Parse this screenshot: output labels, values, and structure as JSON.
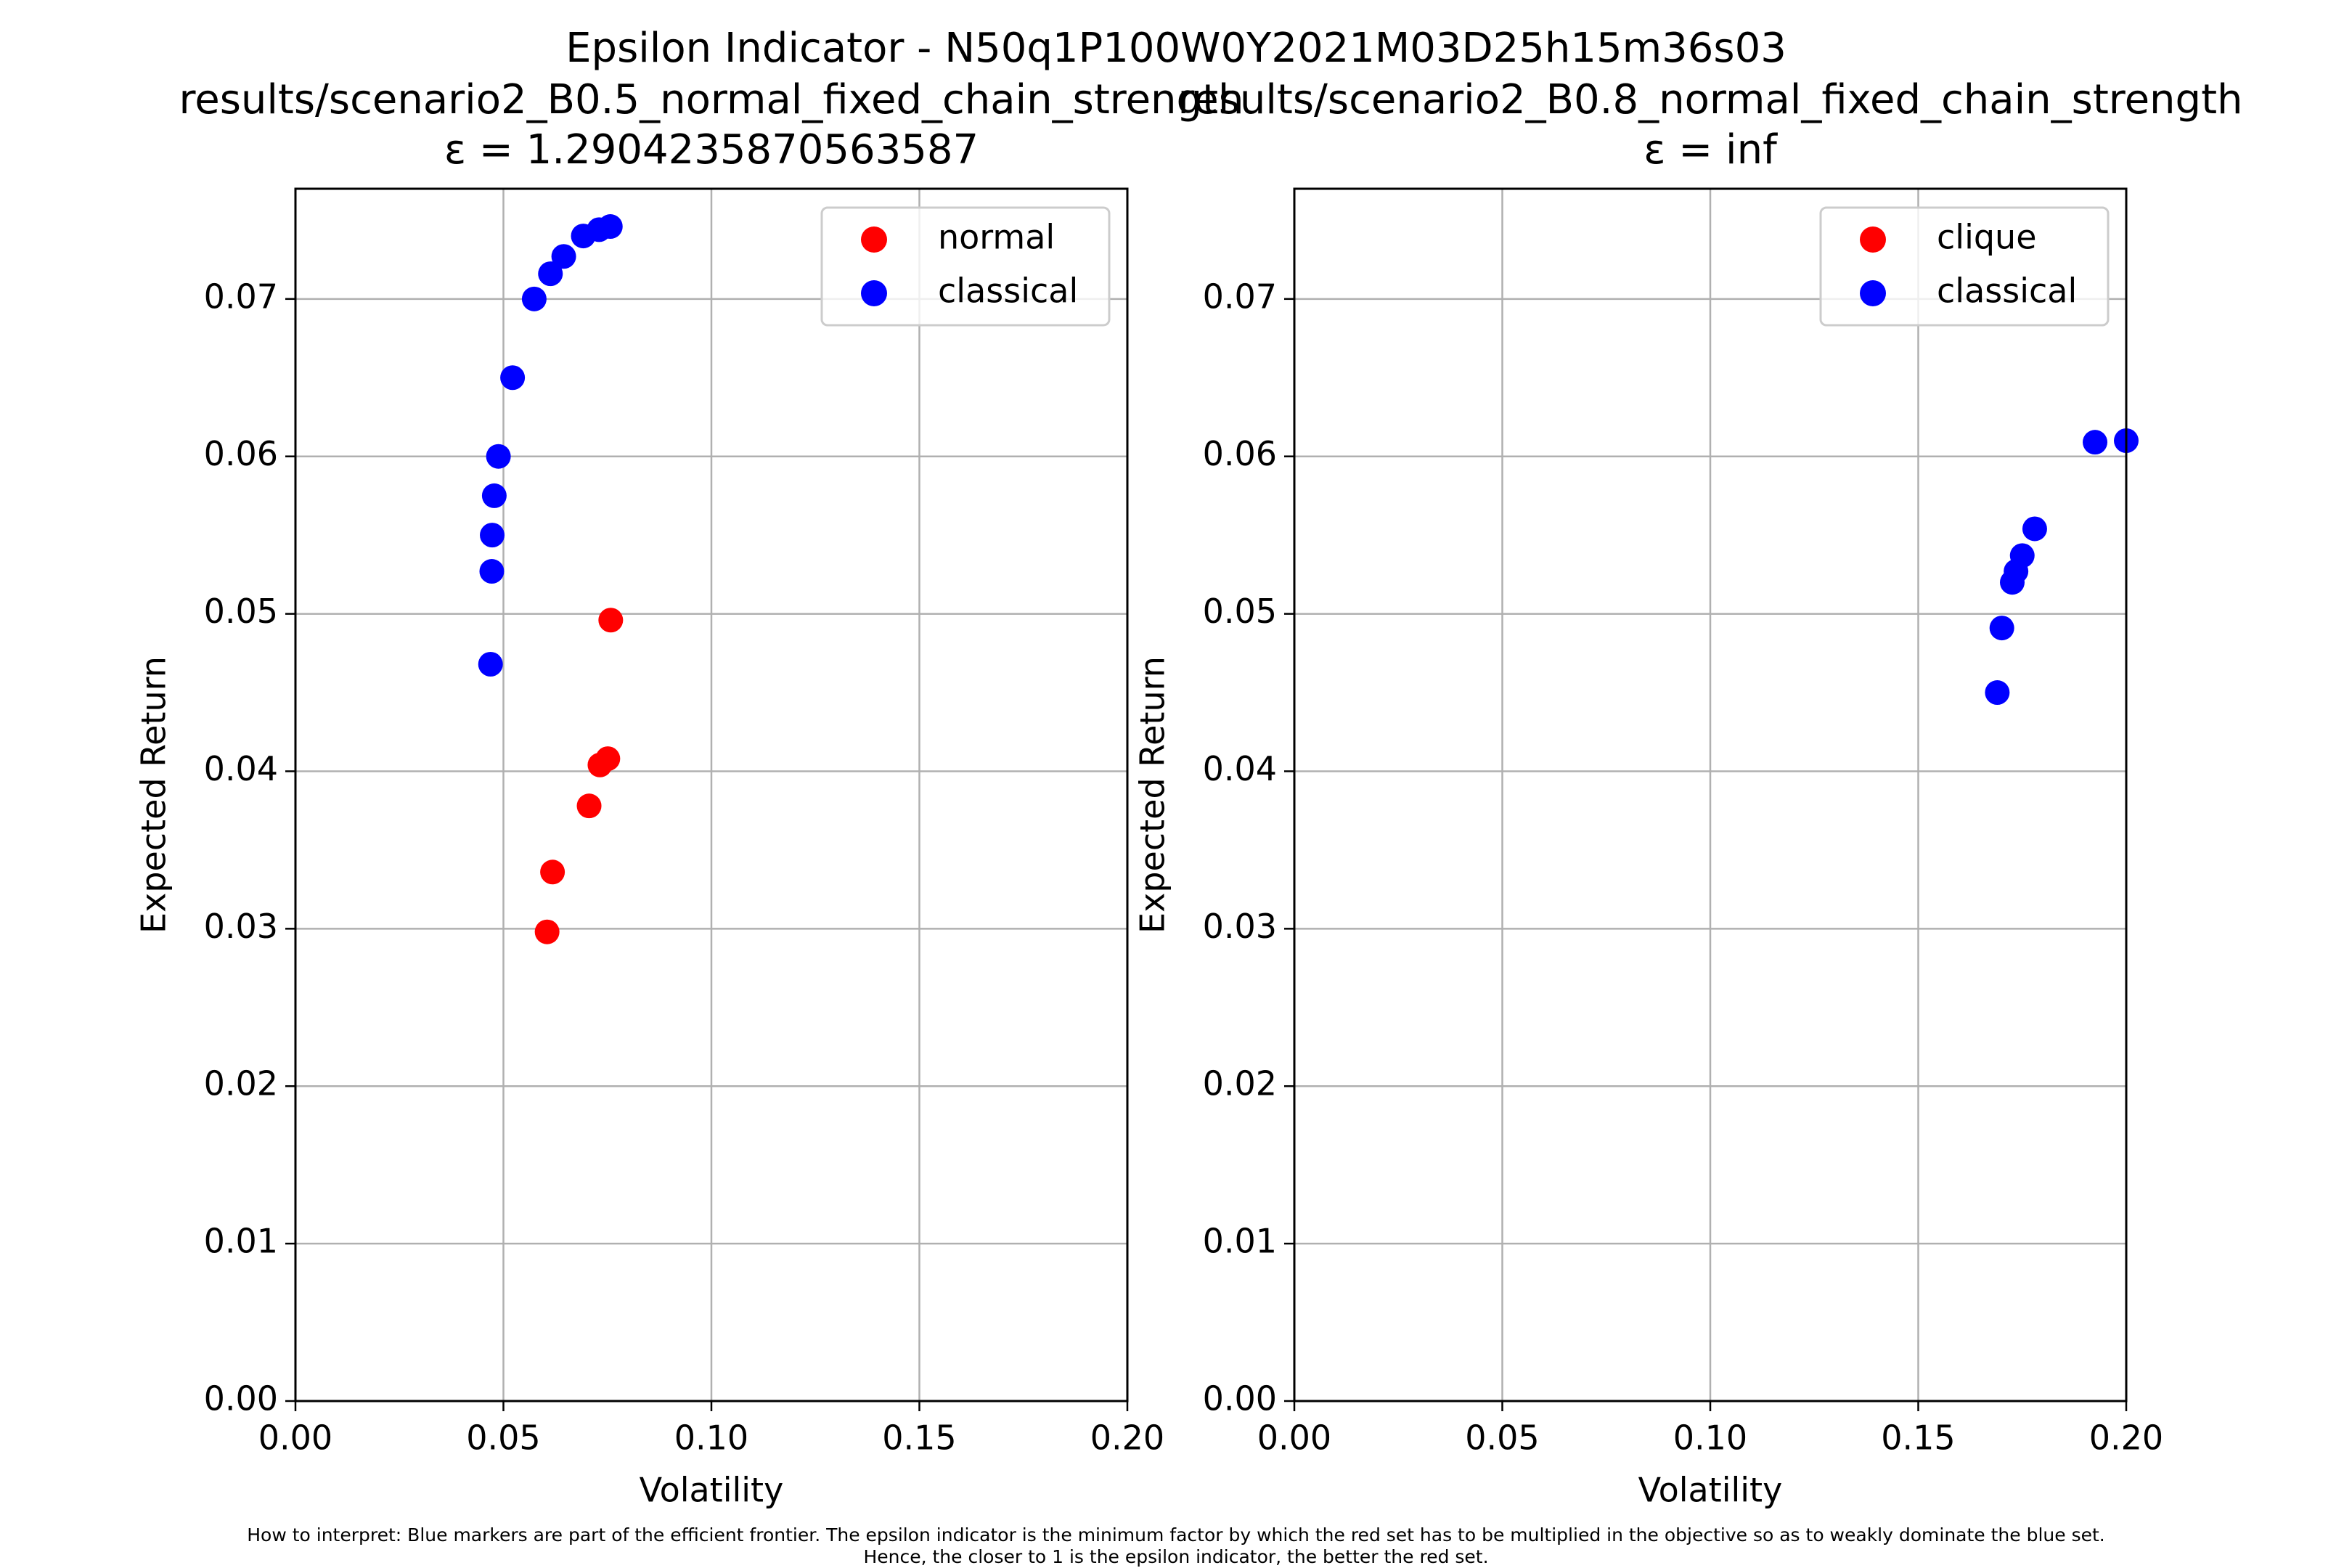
{
  "suptitle": "Epsilon Indicator - N50q1P100W0Y2021M03D25h15m36s03",
  "footnote": {
    "line1": "How to interpret: Blue markers are part of the efficient frontier. The epsilon indicator is the minimum factor by which the red set has to be multiplied in the objective so as to weakly dominate the blue set.",
    "line2": "Hence, the closer to 1 is the epsilon indicator, the better the red set."
  },
  "colors": {
    "red_set": "#ff0000",
    "blue_set": "#0000ff",
    "grid": "#b0b0b0"
  },
  "chart_data": [
    {
      "type": "scatter",
      "title_line1": "results/scenario2_B0.5_normal_fixed_chain_strength",
      "title_line2": "ε = 1.2904235870563587",
      "xlabel": "Volatility",
      "ylabel": "Expected Return",
      "xlim": [
        0.0,
        0.2
      ],
      "ylim": [
        0.0,
        0.077
      ],
      "xticks": [
        0.0,
        0.05,
        0.1,
        0.15,
        0.2
      ],
      "xtick_labels": [
        "0.00",
        "0.05",
        "0.10",
        "0.15",
        "0.20"
      ],
      "yticks": [
        0.0,
        0.01,
        0.02,
        0.03,
        0.04,
        0.05,
        0.06,
        0.07
      ],
      "ytick_labels": [
        "0.00",
        "0.01",
        "0.02",
        "0.03",
        "0.04",
        "0.05",
        "0.06",
        "0.07"
      ],
      "grid": true,
      "legend_position": "top-right",
      "series": [
        {
          "name": "normal",
          "color": "#ff0000",
          "x": [
            0.0605,
            0.0618,
            0.0706,
            0.0732,
            0.0751,
            0.0758
          ],
          "y": [
            0.0298,
            0.0336,
            0.0378,
            0.0404,
            0.0408,
            0.0496
          ]
        },
        {
          "name": "classical",
          "color": "#0000ff",
          "x": [
            0.0469,
            0.0472,
            0.0473,
            0.0478,
            0.0488,
            0.0522,
            0.0574,
            0.0613,
            0.0645,
            0.0692,
            0.073,
            0.0757
          ],
          "y": [
            0.0468,
            0.0527,
            0.055,
            0.0575,
            0.06,
            0.065,
            0.07,
            0.0716,
            0.0727,
            0.074,
            0.0744,
            0.0746
          ]
        }
      ]
    },
    {
      "type": "scatter",
      "title_line1": "results/scenario2_B0.8_normal_fixed_chain_strength",
      "title_line2": "ε = inf",
      "xlabel": "Volatility",
      "ylabel": "Expected Return",
      "xlim": [
        0.0,
        0.2
      ],
      "ylim": [
        0.0,
        0.077
      ],
      "xticks": [
        0.0,
        0.05,
        0.1,
        0.15,
        0.2
      ],
      "xtick_labels": [
        "0.00",
        "0.05",
        "0.10",
        "0.15",
        "0.20"
      ],
      "yticks": [
        0.0,
        0.01,
        0.02,
        0.03,
        0.04,
        0.05,
        0.06,
        0.07
      ],
      "ytick_labels": [
        "0.00",
        "0.01",
        "0.02",
        "0.03",
        "0.04",
        "0.05",
        "0.06",
        "0.07"
      ],
      "grid": true,
      "legend_position": "top-right",
      "series": [
        {
          "name": "clique",
          "color": "#ff0000",
          "x": [],
          "y": []
        },
        {
          "name": "classical",
          "color": "#0000ff",
          "x": [
            0.169,
            0.1701,
            0.1726,
            0.1735,
            0.175,
            0.178,
            0.1925,
            0.2
          ],
          "y": [
            0.045,
            0.0491,
            0.052,
            0.0527,
            0.0537,
            0.0554,
            0.0609,
            0.061
          ]
        }
      ]
    }
  ]
}
